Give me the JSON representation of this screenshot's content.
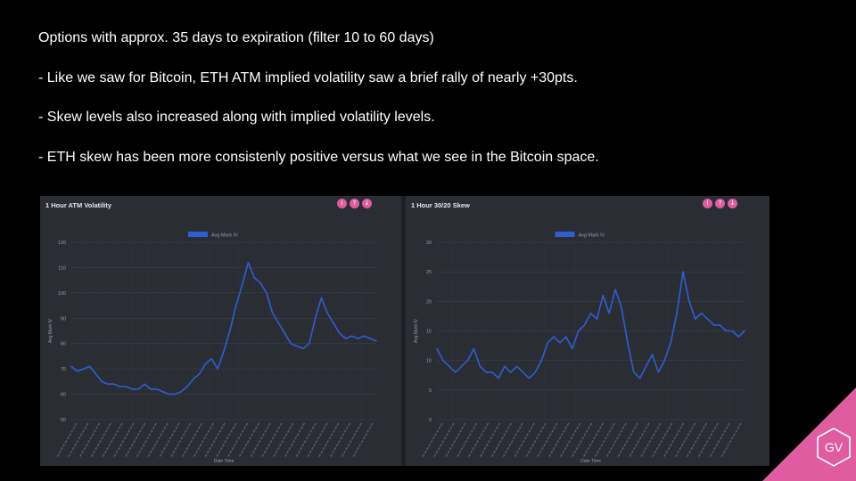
{
  "slide": {
    "bullets": [
      "Options with approx. 35 days to expiration (filter 10 to 60 days)",
      "- Like we saw for Bitcoin, ETH ATM implied volatility saw a brief rally of nearly +30pts.",
      "- Skew levels also increased along with implied volatility levels.",
      "- ETH skew has been more consistenly positive versus what we see in the Bitcoin space."
    ],
    "logo_text": "GV",
    "accent_color": "#e05ca0",
    "background_color": "#000000"
  },
  "panels": [
    {
      "title": "1 Hour ATM Volatility",
      "buttons": [
        "info-icon",
        "help-icon",
        "download-icon"
      ]
    },
    {
      "title": "1 Hour 30/20 Skew",
      "buttons": [
        "info-icon",
        "help-icon",
        "download-icon"
      ]
    }
  ],
  "chart_data": [
    {
      "type": "line",
      "title": "1 Hour ATM Volatility",
      "xlabel": "Date Time",
      "ylabel": "Avg Mark IV",
      "ylim": [
        50,
        120
      ],
      "yticks": [
        50,
        60,
        70,
        80,
        90,
        100,
        110,
        120
      ],
      "grid": true,
      "legend": "top-center",
      "series": [
        {
          "name": "Avg Mark IV",
          "color": "#2f5fcf",
          "x": [
            0,
            2,
            4,
            6,
            8,
            10,
            12,
            14,
            16,
            18,
            20,
            22,
            24,
            26,
            28,
            30,
            32,
            34,
            36,
            38,
            40,
            42,
            44,
            46,
            48,
            50,
            52,
            54,
            56,
            58,
            60,
            62,
            64,
            66,
            68,
            70,
            72,
            74,
            76,
            78,
            80,
            82,
            84,
            86,
            88,
            90,
            92,
            94,
            96,
            98,
            100
          ],
          "values": [
            71,
            69,
            70,
            71,
            68,
            65,
            64,
            64,
            63,
            63,
            62,
            62,
            64,
            62,
            62,
            61,
            60,
            60,
            61,
            63,
            66,
            68,
            72,
            74,
            70,
            77,
            85,
            95,
            103,
            112,
            106,
            104,
            100,
            92,
            88,
            84,
            80,
            79,
            78,
            80,
            90,
            98,
            92,
            88,
            84,
            82,
            83,
            82,
            83,
            82,
            81
          ]
        }
      ]
    },
    {
      "type": "line",
      "title": "1 Hour 30/20 Skew",
      "xlabel": "Date Time",
      "ylabel": "Avg Mark IV",
      "ylim": [
        0,
        30
      ],
      "yticks": [
        0,
        5,
        10,
        15,
        20,
        25,
        30
      ],
      "grid": true,
      "legend": "top-center",
      "series": [
        {
          "name": "Avg Mark IV",
          "color": "#2f5fcf",
          "x": [
            0,
            2,
            4,
            6,
            8,
            10,
            12,
            14,
            16,
            18,
            20,
            22,
            24,
            26,
            28,
            30,
            32,
            34,
            36,
            38,
            40,
            42,
            44,
            46,
            48,
            50,
            52,
            54,
            56,
            58,
            60,
            62,
            64,
            66,
            68,
            70,
            72,
            74,
            76,
            78,
            80,
            82,
            84,
            86,
            88,
            90,
            92,
            94,
            96,
            98,
            100
          ],
          "values": [
            12,
            10,
            9,
            8,
            9,
            10,
            12,
            9,
            8,
            8,
            7,
            9,
            8,
            9,
            8,
            7,
            8,
            10,
            13,
            14,
            13,
            14,
            12,
            15,
            16,
            18,
            17,
            21,
            18,
            22,
            19,
            13,
            8,
            7,
            9,
            11,
            8,
            10,
            13,
            18,
            25,
            20,
            17,
            18,
            17,
            16,
            16,
            15,
            15,
            14,
            15
          ]
        }
      ]
    }
  ]
}
